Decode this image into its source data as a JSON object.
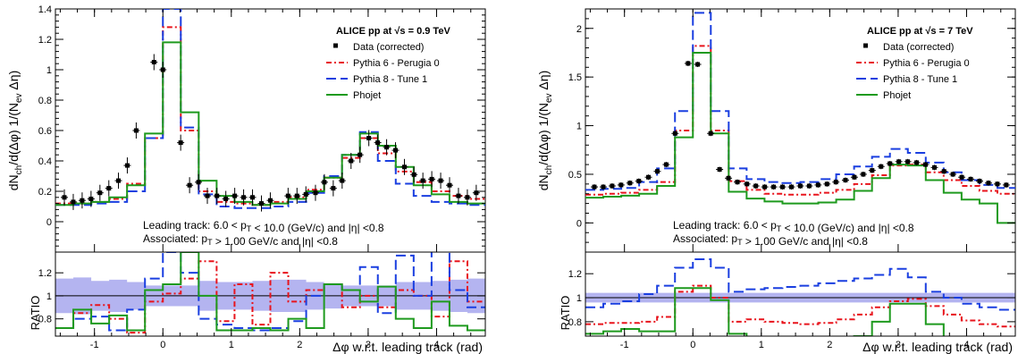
{
  "colors": {
    "data": "#000000",
    "pythia6": "#e8141c",
    "pythia8": "#1a3fe0",
    "phojet": "#1e9a1e",
    "band": "#b4b4f0"
  },
  "chart_data": [
    {
      "type": "line",
      "panel_label": "left",
      "header": "ALICE pp at √s = 0.9 TeV",
      "ylabel": "dN_ch/d(Δφ) 1/(N_ev Δη)",
      "xlabel": "Δφ w.r.t. leading track (rad)",
      "ratio_label": "RATIO",
      "annotation_lines": [
        "Leading track: 6.0 < p_T < 10.0 (GeV/c) and |η| <0.8",
        "Associated: p_T > 1.00 GeV/c and |η| <0.8"
      ],
      "legend": [
        "Data (corrected)",
        "Pythia 6 -  Perugia 0",
        "Pythia 8 -  Tune 1",
        "Phojet"
      ],
      "xlim": [
        -1.5708,
        4.7124
      ],
      "ylim": [
        -0.2,
        1.4
      ],
      "ratio_ylim": [
        0.65,
        1.38
      ],
      "xticks": [
        -1,
        0,
        1,
        2,
        3,
        4
      ],
      "yticks": [
        0,
        0.2,
        0.4,
        0.6,
        0.8,
        1,
        1.2,
        1.4
      ],
      "ratio_yticks": [
        0.8,
        1,
        1.2
      ],
      "bin_edges": [
        -1.5708,
        -1.309,
        -1.0472,
        -0.7854,
        -0.5236,
        -0.2618,
        0.0,
        0.2618,
        0.5236,
        0.7854,
        1.0472,
        1.309,
        1.5708,
        1.8326,
        2.0944,
        2.3562,
        2.618,
        2.8798,
        3.1416,
        3.4034,
        3.6652,
        3.927,
        4.1888,
        4.4506,
        4.7124
      ],
      "data_points": [
        {
          "x": -1.44,
          "y": 0.16
        },
        {
          "x": -1.31,
          "y": 0.13
        },
        {
          "x": -1.18,
          "y": 0.14
        },
        {
          "x": -1.05,
          "y": 0.15
        },
        {
          "x": -0.92,
          "y": 0.19
        },
        {
          "x": -0.79,
          "y": 0.22
        },
        {
          "x": -0.65,
          "y": 0.27
        },
        {
          "x": -0.52,
          "y": 0.37
        },
        {
          "x": -0.39,
          "y": 0.6
        },
        {
          "x": -0.13,
          "y": 1.05
        },
        {
          "x": 0.0,
          "y": 1.0
        },
        {
          "x": 0.26,
          "y": 0.52
        },
        {
          "x": 0.39,
          "y": 0.24
        },
        {
          "x": 0.52,
          "y": 0.26
        },
        {
          "x": 0.65,
          "y": 0.17
        },
        {
          "x": 0.79,
          "y": 0.17
        },
        {
          "x": 0.92,
          "y": 0.15
        },
        {
          "x": 1.05,
          "y": 0.17
        },
        {
          "x": 1.18,
          "y": 0.16
        },
        {
          "x": 1.31,
          "y": 0.16
        },
        {
          "x": 1.44,
          "y": 0.12
        },
        {
          "x": 1.57,
          "y": 0.14
        },
        {
          "x": 1.83,
          "y": 0.17
        },
        {
          "x": 1.96,
          "y": 0.17
        },
        {
          "x": 2.09,
          "y": 0.18
        },
        {
          "x": 2.23,
          "y": 0.19
        },
        {
          "x": 2.36,
          "y": 0.26
        },
        {
          "x": 2.49,
          "y": 0.22
        },
        {
          "x": 2.62,
          "y": 0.27
        },
        {
          "x": 2.75,
          "y": 0.4
        },
        {
          "x": 2.88,
          "y": 0.44
        },
        {
          "x": 3.01,
          "y": 0.55
        },
        {
          "x": 3.14,
          "y": 0.52
        },
        {
          "x": 3.27,
          "y": 0.49
        },
        {
          "x": 3.4,
          "y": 0.47
        },
        {
          "x": 3.53,
          "y": 0.36
        },
        {
          "x": 3.67,
          "y": 0.31
        },
        {
          "x": 3.8,
          "y": 0.27
        },
        {
          "x": 3.93,
          "y": 0.28
        },
        {
          "x": 4.06,
          "y": 0.27
        },
        {
          "x": 4.19,
          "y": 0.24
        },
        {
          "x": 4.32,
          "y": 0.17
        },
        {
          "x": 4.45,
          "y": 0.16
        },
        {
          "x": 4.58,
          "y": 0.19
        }
      ],
      "series": [
        {
          "name": "Pythia 6 -  Perugia 0",
          "style": "dashdot",
          "values": [
            0.12,
            0.12,
            0.13,
            0.15,
            0.25,
            0.55,
            1.28,
            0.6,
            0.2,
            0.13,
            0.12,
            0.11,
            0.13,
            0.16,
            0.21,
            0.29,
            0.42,
            0.55,
            0.45,
            0.33,
            0.26,
            0.2,
            0.17,
            0.15
          ]
        },
        {
          "name": "Pythia 8 -  Tune 1",
          "style": "dashed",
          "values": [
            0.11,
            0.11,
            0.12,
            0.13,
            0.2,
            0.55,
            1.4,
            0.62,
            0.18,
            0.1,
            0.09,
            0.09,
            0.1,
            0.13,
            0.19,
            0.3,
            0.44,
            0.59,
            0.4,
            0.25,
            0.17,
            0.13,
            0.12,
            0.11
          ]
        },
        {
          "name": "Phojet",
          "style": "solid",
          "values": [
            0.11,
            0.12,
            0.13,
            0.16,
            0.24,
            0.58,
            1.18,
            0.72,
            0.27,
            0.17,
            0.13,
            0.11,
            0.12,
            0.15,
            0.2,
            0.29,
            0.44,
            0.58,
            0.5,
            0.36,
            0.24,
            0.18,
            0.13,
            0.12
          ]
        }
      ],
      "ratio_band": [
        0.15,
        0.16,
        0.13,
        0.14,
        0.12,
        0.09,
        0.09,
        0.09,
        0.13,
        0.12,
        0.12,
        0.13,
        0.14,
        0.14,
        0.12,
        0.11,
        0.09,
        0.09,
        0.09,
        0.12,
        0.12,
        0.13,
        0.14,
        0.15
      ],
      "ratio_series": [
        {
          "name": "Pythia 6 -  Perugia 0",
          "style": "dashdot",
          "values": [
            0.72,
            0.85,
            0.92,
            0.8,
            0.68,
            0.95,
            1.02,
            1.15,
            1.3,
            0.78,
            1.1,
            0.75,
            1.2,
            0.95,
            1.05,
            1.1,
            0.9,
            1.0,
            0.9,
            1.05,
            1.0,
            0.82,
            1.3,
            0.95
          ]
        },
        {
          "name": "Pythia 8 -  Tune 1",
          "style": "dashed",
          "values": [
            0.72,
            0.8,
            0.82,
            0.7,
            0.88,
            1.15,
            1.38,
            1.2,
            0.8,
            0.75,
            0.72,
            0.7,
            0.72,
            0.78,
            1.0,
            1.1,
            1.05,
            1.25,
            0.85,
            1.35,
            1.0,
            1.4,
            1.05,
            0.9
          ]
        },
        {
          "name": "Phojet",
          "style": "solid",
          "values": [
            0.72,
            0.88,
            0.76,
            0.83,
            0.7,
            1.05,
            1.1,
            1.38,
            1.0,
            0.7,
            0.7,
            0.72,
            0.7,
            0.8,
            0.72,
            1.1,
            1.05,
            0.95,
            1.08,
            0.8,
            0.72,
            0.95,
            0.74,
            0.7
          ]
        }
      ]
    },
    {
      "type": "line",
      "panel_label": "right",
      "header": "ALICE pp at √s = 7 TeV",
      "ylabel": "dN_ch/d(Δφ) 1/(N_ev Δη)",
      "xlabel": "Δφ w.r.t. leading track (rad)",
      "ratio_label": "RATIO",
      "annotation_lines": [
        "Leading track: 6.0 < p_T < 10.0 (GeV/c) and |η| <0.8",
        "Associated: p_T > 1.00 GeV/c and |η| <0.8"
      ],
      "legend": [
        "Data (corrected)",
        "Pythia 6 -  Perugia 0",
        "Pythia 8 -  Tune 1",
        "Phojet"
      ],
      "xlim": [
        -1.5708,
        4.7124
      ],
      "ylim": [
        -0.3,
        2.2
      ],
      "ratio_ylim": [
        0.68,
        1.38
      ],
      "xticks": [
        -1,
        0,
        1,
        2,
        3,
        4
      ],
      "yticks": [
        0,
        0.5,
        1,
        1.5,
        2
      ],
      "ratio_yticks": [
        0.8,
        1,
        1.2
      ],
      "bin_edges": [
        -1.5708,
        -1.309,
        -1.0472,
        -0.7854,
        -0.5236,
        -0.2618,
        0.0,
        0.2618,
        0.5236,
        0.7854,
        1.0472,
        1.309,
        1.5708,
        1.8326,
        2.0944,
        2.3562,
        2.618,
        2.8798,
        3.1416,
        3.4034,
        3.6652,
        3.927,
        4.1888,
        4.4506,
        4.7124
      ],
      "data_points": [
        {
          "x": -1.44,
          "y": 0.37
        },
        {
          "x": -1.31,
          "y": 0.37
        },
        {
          "x": -1.18,
          "y": 0.38
        },
        {
          "x": -1.05,
          "y": 0.39
        },
        {
          "x": -0.92,
          "y": 0.41
        },
        {
          "x": -0.79,
          "y": 0.43
        },
        {
          "x": -0.65,
          "y": 0.47
        },
        {
          "x": -0.52,
          "y": 0.53
        },
        {
          "x": -0.39,
          "y": 0.6
        },
        {
          "x": -0.26,
          "y": 0.92
        },
        {
          "x": -0.07,
          "y": 1.64
        },
        {
          "x": 0.07,
          "y": 1.63
        },
        {
          "x": 0.26,
          "y": 0.92
        },
        {
          "x": 0.39,
          "y": 0.55
        },
        {
          "x": 0.52,
          "y": 0.46
        },
        {
          "x": 0.65,
          "y": 0.42
        },
        {
          "x": 0.79,
          "y": 0.4
        },
        {
          "x": 0.92,
          "y": 0.38
        },
        {
          "x": 1.05,
          "y": 0.37
        },
        {
          "x": 1.18,
          "y": 0.37
        },
        {
          "x": 1.31,
          "y": 0.37
        },
        {
          "x": 1.44,
          "y": 0.37
        },
        {
          "x": 1.57,
          "y": 0.38
        },
        {
          "x": 1.7,
          "y": 0.38
        },
        {
          "x": 1.83,
          "y": 0.39
        },
        {
          "x": 1.96,
          "y": 0.4
        },
        {
          "x": 2.09,
          "y": 0.42
        },
        {
          "x": 2.23,
          "y": 0.44
        },
        {
          "x": 2.36,
          "y": 0.47
        },
        {
          "x": 2.49,
          "y": 0.5
        },
        {
          "x": 2.62,
          "y": 0.54
        },
        {
          "x": 2.75,
          "y": 0.58
        },
        {
          "x": 2.88,
          "y": 0.61
        },
        {
          "x": 3.01,
          "y": 0.63
        },
        {
          "x": 3.14,
          "y": 0.63
        },
        {
          "x": 3.27,
          "y": 0.62
        },
        {
          "x": 3.4,
          "y": 0.6
        },
        {
          "x": 3.53,
          "y": 0.57
        },
        {
          "x": 3.67,
          "y": 0.53
        },
        {
          "x": 3.8,
          "y": 0.5
        },
        {
          "x": 3.93,
          "y": 0.47
        },
        {
          "x": 4.06,
          "y": 0.45
        },
        {
          "x": 4.19,
          "y": 0.43
        },
        {
          "x": 4.32,
          "y": 0.41
        },
        {
          "x": 4.45,
          "y": 0.4
        },
        {
          "x": 4.58,
          "y": 0.39
        }
      ],
      "series": [
        {
          "name": "Pythia 6 -  Perugia 0",
          "style": "dashdot",
          "values": [
            0.29,
            0.3,
            0.31,
            0.34,
            0.42,
            0.95,
            1.82,
            0.95,
            0.43,
            0.34,
            0.3,
            0.29,
            0.29,
            0.31,
            0.34,
            0.4,
            0.49,
            0.59,
            0.6,
            0.52,
            0.44,
            0.38,
            0.33,
            0.3
          ]
        },
        {
          "name": "Pythia 8 -  Tune 1",
          "style": "dashed",
          "values": [
            0.34,
            0.35,
            0.36,
            0.42,
            0.56,
            1.15,
            2.16,
            1.15,
            0.56,
            0.45,
            0.42,
            0.41,
            0.42,
            0.45,
            0.5,
            0.58,
            0.68,
            0.76,
            0.72,
            0.62,
            0.52,
            0.44,
            0.39,
            0.36
          ]
        },
        {
          "name": "Phojet",
          "style": "solid",
          "values": [
            0.26,
            0.27,
            0.28,
            0.3,
            0.38,
            0.88,
            1.75,
            0.92,
            0.32,
            0.25,
            0.22,
            0.2,
            0.2,
            0.21,
            0.24,
            0.33,
            0.46,
            0.6,
            0.59,
            0.44,
            0.31,
            0.24,
            0.2,
            0.0
          ]
        }
      ],
      "ratio_band": [
        0.04,
        0.04,
        0.04,
        0.04,
        0.04,
        0.04,
        0.04,
        0.04,
        0.04,
        0.04,
        0.04,
        0.04,
        0.04,
        0.04,
        0.04,
        0.04,
        0.04,
        0.04,
        0.04,
        0.04,
        0.04,
        0.04,
        0.04,
        0.04
      ],
      "ratio_series": [
        {
          "name": "Pythia 6 -  Perugia 0",
          "style": "dashdot",
          "values": [
            0.78,
            0.79,
            0.79,
            0.8,
            0.84,
            1.05,
            1.1,
            1.0,
            0.8,
            0.82,
            0.8,
            0.79,
            0.78,
            0.79,
            0.82,
            0.86,
            0.92,
            0.97,
            0.99,
            0.93,
            0.86,
            0.81,
            0.78,
            0.76
          ]
        },
        {
          "name": "Pythia 8 -  Tune 1",
          "style": "dashed",
          "values": [
            0.92,
            0.95,
            0.97,
            1.03,
            1.1,
            1.25,
            1.32,
            1.25,
            1.05,
            1.07,
            1.08,
            1.09,
            1.1,
            1.12,
            1.14,
            1.16,
            1.19,
            1.24,
            1.17,
            1.05,
            1.0,
            0.95,
            0.92,
            0.9
          ]
        },
        {
          "name": "Phojet",
          "style": "solid",
          "values": [
            0.7,
            0.72,
            0.74,
            0.72,
            0.72,
            1.08,
            1.08,
            0.98,
            0.7,
            0.62,
            0.6,
            0.58,
            0.56,
            0.56,
            0.6,
            0.68,
            0.8,
            0.95,
            0.95,
            0.78,
            0.62,
            0.52,
            0.48,
            0.4
          ]
        }
      ]
    }
  ]
}
